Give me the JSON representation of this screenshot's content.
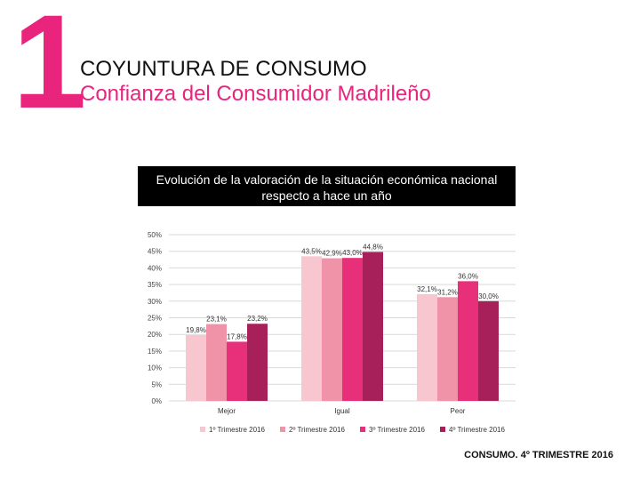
{
  "section_number": "1",
  "heading": {
    "title": "COYUNTURA DE CONSUMO",
    "subtitle": "Confianza del Consumidor Madrileño"
  },
  "colors": {
    "accent": "#e8247d"
  },
  "chart_data": {
    "type": "bar",
    "title_line1": "Evolución de la valoración de la situación económica  nacional",
    "title_line2": "respecto a hace un año",
    "categories": [
      "Mejor",
      "Igual",
      "Peor"
    ],
    "series": [
      {
        "name": "1º Trimestre 2016",
        "color": "#f7c6cf",
        "values": [
          19.8,
          43.5,
          32.1
        ],
        "labels": [
          "19,8%",
          "43,5%",
          "32,1%"
        ]
      },
      {
        "name": "2º Trimestre 2016",
        "color": "#f093a8",
        "values": [
          23.1,
          42.9,
          31.2
        ],
        "labels": [
          "23,1%",
          "42,9%",
          "31,2%"
        ]
      },
      {
        "name": "3º Trimestre 2016",
        "color": "#e8307a",
        "values": [
          17.8,
          43.0,
          36.0
        ],
        "labels": [
          "17,8%",
          "43,0%",
          "36,0%"
        ]
      },
      {
        "name": "4º Trimestre 2016",
        "color": "#a8205a",
        "values": [
          23.2,
          44.8,
          30.0
        ],
        "labels": [
          "23,2%",
          "44,8%",
          "30,0%"
        ]
      }
    ],
    "y_ticks": [
      "0%",
      "5%",
      "10%",
      "15%",
      "20%",
      "25%",
      "30%",
      "35%",
      "40%",
      "45%",
      "50%"
    ],
    "ylim": [
      0,
      50
    ],
    "grid": true,
    "legend_position": "bottom"
  },
  "footer": "CONSUMO. 4º TRIMESTRE 2016"
}
